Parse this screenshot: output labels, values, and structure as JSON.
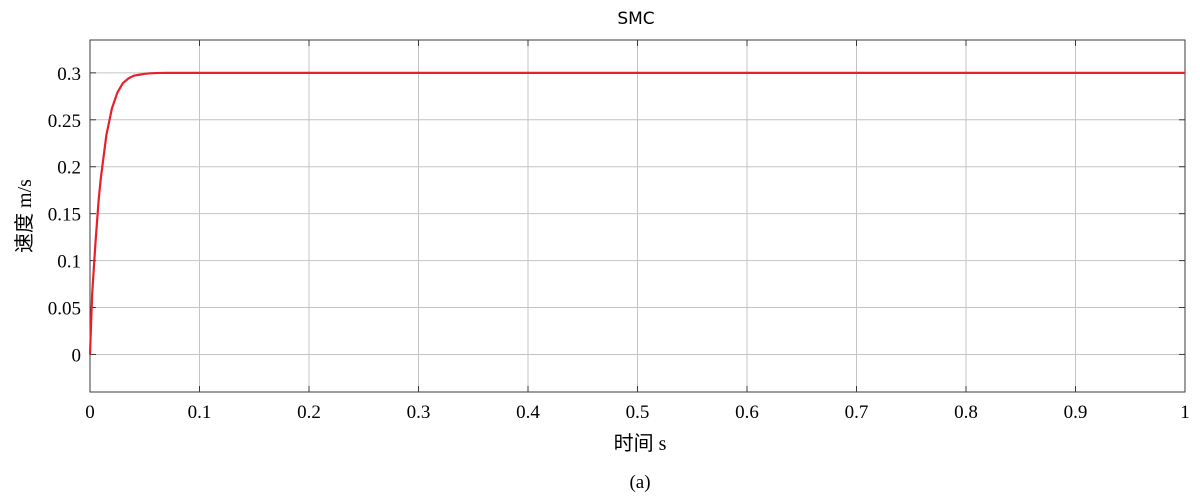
{
  "chart_data": {
    "type": "line",
    "title": "SMC",
    "xlabel": "时间 s",
    "ylabel": "速度 m/s",
    "caption": "(a)",
    "xlim": [
      0,
      1
    ],
    "ylim": [
      -0.04,
      0.335
    ],
    "xticks": [
      0,
      0.1,
      0.2,
      0.3,
      0.4,
      0.5,
      0.6,
      0.7,
      0.8,
      0.9,
      1
    ],
    "xtick_labels": [
      "0",
      "0.1",
      "0.2",
      "0.3",
      "0.4",
      "0.5",
      "0.6",
      "0.7",
      "0.8",
      "0.9",
      "1"
    ],
    "yticks": [
      0,
      0.05,
      0.1,
      0.15,
      0.2,
      0.25,
      0.3
    ],
    "ytick_labels": [
      "0",
      "0.05",
      "0.1",
      "0.15",
      "0.2",
      "0.25",
      "0.3"
    ],
    "grid": true,
    "series": [
      {
        "color": "#e8202a",
        "x": [
          0,
          0.002,
          0.005,
          0.008,
          0.01,
          0.015,
          0.02,
          0.025,
          0.03,
          0.035,
          0.04,
          0.045,
          0.05,
          0.055,
          0.06,
          0.065,
          0.07,
          0.08,
          0.09,
          0.1,
          0.2,
          0.3,
          0.4,
          0.5,
          0.6,
          0.7,
          0.8,
          0.9,
          1.0
        ],
        "y": [
          0,
          0.065,
          0.119,
          0.166,
          0.189,
          0.234,
          0.262,
          0.279,
          0.289,
          0.294,
          0.297,
          0.298,
          0.299,
          0.2995,
          0.2998,
          0.2999,
          0.3,
          0.3,
          0.3,
          0.3,
          0.3,
          0.3,
          0.3,
          0.3,
          0.3,
          0.3,
          0.3,
          0.3,
          0.3
        ]
      }
    ]
  }
}
